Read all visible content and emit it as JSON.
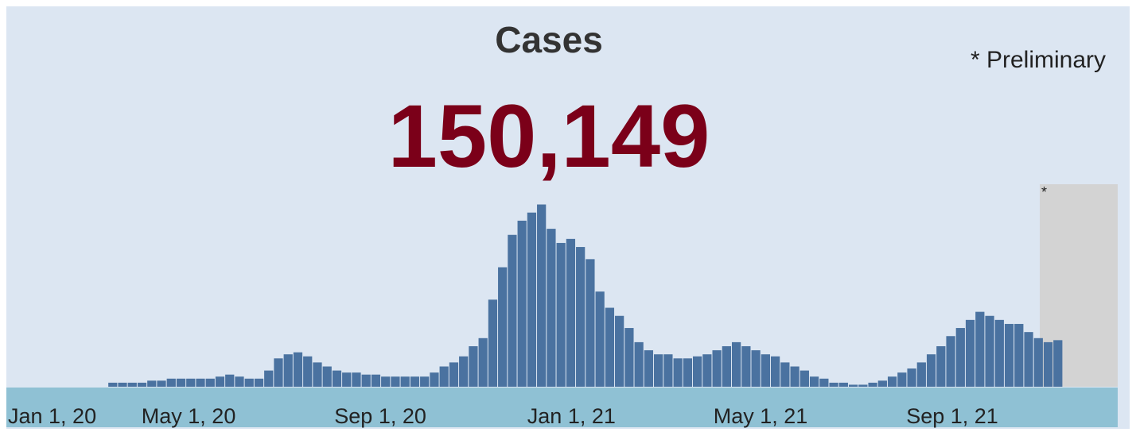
{
  "chart_data": {
    "type": "bar",
    "title": "Cases",
    "headline": "150,149",
    "note": "* Preliminary",
    "preliminary_marker": "*",
    "preliminary_start": 95.6,
    "color": "#4a72a0",
    "values": [
      2,
      2,
      2,
      2,
      3,
      3,
      4,
      4,
      4,
      4,
      4,
      5,
      6,
      5,
      4,
      4,
      8,
      14,
      16,
      17,
      15,
      12,
      10,
      8,
      7,
      7,
      6,
      6,
      5,
      5,
      5,
      5,
      5,
      7,
      10,
      12,
      15,
      20,
      24,
      43,
      59,
      75,
      82,
      86,
      90,
      78,
      71,
      73,
      69,
      63,
      47,
      39,
      35,
      29,
      22,
      18,
      16,
      16,
      14,
      14,
      15,
      16,
      18,
      20,
      22,
      20,
      18,
      16,
      15,
      12,
      10,
      8,
      5,
      4,
      2,
      2,
      1,
      1,
      2,
      3,
      5,
      7,
      9,
      12,
      16,
      20,
      25,
      29,
      33,
      37,
      35,
      33,
      31,
      31,
      27,
      24,
      22,
      23
    ],
    "ylim": [
      0,
      100
    ],
    "xlim": [
      -10.3,
      103.6
    ],
    "xticks": [
      {
        "value": -10.3,
        "label": "Jan 1, 20"
      },
      {
        "value": 3.4,
        "label": "May 1, 20"
      },
      {
        "value": 23.2,
        "label": "Sep 1, 20"
      },
      {
        "value": 43,
        "label": "Jan 1, 21"
      },
      {
        "value": 62.1,
        "label": "May 1, 21"
      },
      {
        "value": 81.9,
        "label": "Sep 1, 21"
      }
    ]
  }
}
